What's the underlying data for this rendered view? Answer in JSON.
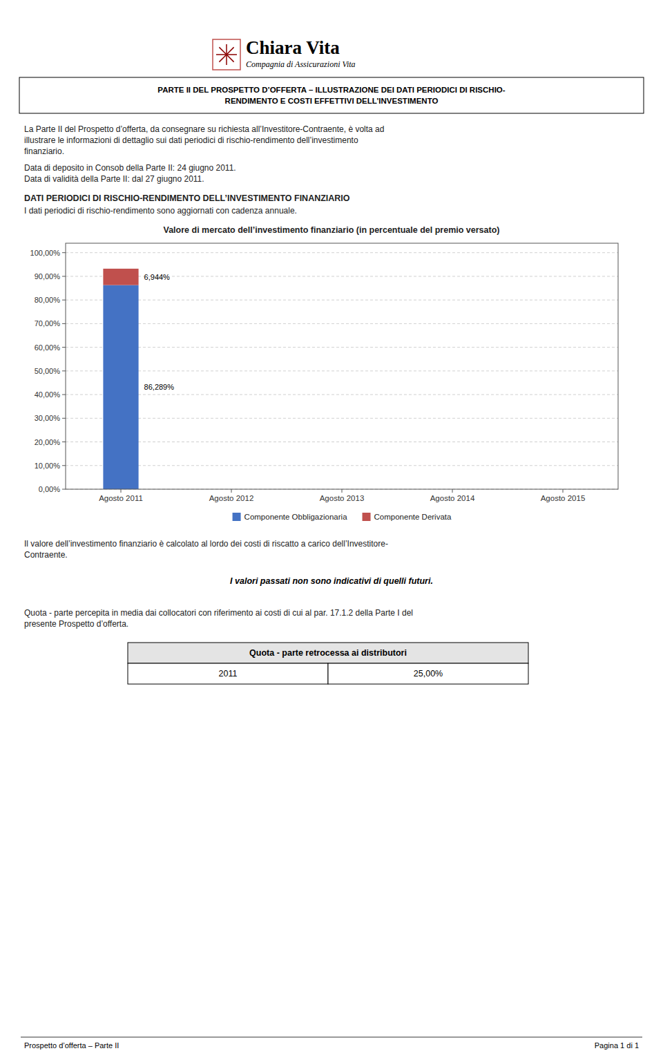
{
  "page": {
    "logo_text": "Chiara Vita",
    "logo_subtitle": "Compagnia di Assicurazioni Vita",
    "logo_border_color": "#C0504D",
    "star_color": "#8B0000",
    "header_line1": "PARTE II DEL PROSPETTO D’OFFERTA – ILLUSTRAZIONE DEI DATI PERIODICI DI RISCHIO-",
    "header_line2": "RENDIMENTO E COSTI EFFETTIVI DELL’INVESTIMENTO",
    "body_line1": "La Parte II del Prospetto d’offerta, da consegnare su richiesta all’Investitore-Contraente, è volta ad",
    "body_line2": "illustrare le informazioni di dettaglio sui dati periodici di rischio-rendimento dell’investimento",
    "body_line3": "finanziario.",
    "deposit_date": "Data di deposito in Consob della Parte II: 24 giugno 2011.",
    "validity_date": "Data di validità della Parte II: dal 27 giugno 2011.",
    "section_title": "DATI PERIODICI DI RISCHIO-RENDIMENTO DELL’INVESTIMENTO FINANZIARIO",
    "section_subtitle": "I dati periodici di rischio-rendimento sono aggiornati con cadenza annuale.",
    "text_after1": "Il valore dell’investimento finanziario è calcolato al lordo dei costi di riscatto a carico dell’Investitore-",
    "text_after2": "Contraente.",
    "italic_text": "I valori passati non sono indicativi di quelli futuri.",
    "quota_line1": "Quota - parte percepita in media dai collocatori con riferimento ai costi di cui al par. 17.1.2 della Parte I del",
    "quota_line2": "presente Prospetto d’offerta.",
    "table_header": "Quota - parte retrocessa ai distributori",
    "table_year": "2011",
    "table_value": "25,00%",
    "footer_left": "Prospetto d’offerta – Parte II",
    "footer_right": "Pagina 1 di 1"
  },
  "chart_data": {
    "type": "bar",
    "title": "Valore di mercato dell’investimento finanziario (in percentuale del premio versato)",
    "stacked": true,
    "categories": [
      "Agosto 2011",
      "Agosto 2012",
      "Agosto 2013",
      "Agosto 2014",
      "Agosto 2015"
    ],
    "series": [
      {
        "name": "Componente Obbligazionaria",
        "color": "#4472C4",
        "values": [
          86.289,
          0,
          0,
          0,
          0
        ],
        "value_labels": [
          "86,289%",
          null,
          null,
          null,
          null
        ]
      },
      {
        "name": "Componente Derivata",
        "color": "#C0504D",
        "values": [
          6.944,
          0,
          0,
          0,
          0
        ],
        "value_labels": [
          "6,944%",
          null,
          null,
          null,
          null
        ]
      }
    ],
    "data_labels": true,
    "ylim": [
      0,
      104
    ],
    "yticks": [
      {
        "value": 0,
        "label": "0,00%"
      },
      {
        "value": 10,
        "label": "10,00%"
      },
      {
        "value": 20,
        "label": "20,00%"
      },
      {
        "value": 30,
        "label": "30,00%"
      },
      {
        "value": 40,
        "label": "40,00%"
      },
      {
        "value": 50,
        "label": "50,00%"
      },
      {
        "value": 60,
        "label": "60,00%"
      },
      {
        "value": 70,
        "label": "70,00%"
      },
      {
        "value": 80,
        "label": "80,00%"
      },
      {
        "value": 90,
        "label": "90,00%"
      },
      {
        "value": 100,
        "label": "100,00%"
      }
    ],
    "grid": true,
    "legend": "bottom"
  }
}
